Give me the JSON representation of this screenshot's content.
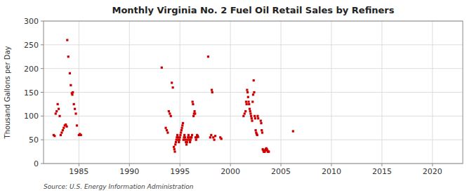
{
  "chart_data": {
    "type": "scatter",
    "title": "Monthly Virginia No. 2 Fuel Oil Retail Sales by Refiners",
    "ylabel": "Thousand Gallons per Day",
    "source": "Source: U.S. Energy Information Administration",
    "color": "#cc0000",
    "marker": "square",
    "grid": true,
    "xlim": [
      1981.5,
      2023
    ],
    "ylim": [
      0,
      300
    ],
    "xticks": [
      1985,
      1990,
      1995,
      2000,
      2005,
      2010,
      2015,
      2020
    ],
    "yticks": [
      0,
      50,
      100,
      150,
      200,
      250,
      300
    ],
    "x": [
      1982.5,
      1982.6,
      1982.7,
      1982.8,
      1982.9,
      1983.0,
      1983.1,
      1983.2,
      1983.3,
      1983.4,
      1983.5,
      1983.6,
      1983.7,
      1983.8,
      1983.85,
      1983.95,
      1984.1,
      1984.2,
      1984.3,
      1984.35,
      1984.4,
      1984.5,
      1984.6,
      1984.7,
      1984.8,
      1985.0,
      1985.1,
      1985.2,
      1993.2,
      1993.6,
      1993.7,
      1993.8,
      1993.9,
      1994.0,
      1994.1,
      1994.2,
      1994.3,
      1994.4,
      1994.45,
      1994.5,
      1994.55,
      1994.6,
      1994.65,
      1994.7,
      1994.75,
      1994.8,
      1994.85,
      1994.9,
      1994.95,
      1995.0,
      1995.05,
      1995.1,
      1995.15,
      1995.2,
      1995.25,
      1995.3,
      1995.35,
      1995.4,
      1995.45,
      1995.5,
      1995.55,
      1995.6,
      1995.65,
      1995.7,
      1995.75,
      1995.8,
      1995.85,
      1995.9,
      1995.95,
      1996.0,
      1996.05,
      1996.1,
      1996.15,
      1996.2,
      1996.25,
      1996.3,
      1996.35,
      1996.4,
      1996.45,
      1996.5,
      1996.55,
      1996.6,
      1996.65,
      1996.7,
      1996.75,
      1996.8,
      1997.8,
      1998.0,
      1998.1,
      1998.15,
      1998.2,
      1998.3,
      1998.4,
      1998.5,
      1999.0,
      1999.1,
      2001.3,
      2001.4,
      2001.5,
      2001.55,
      2001.6,
      2001.65,
      2001.7,
      2001.75,
      2001.8,
      2001.85,
      2001.9,
      2001.95,
      2002.0,
      2002.05,
      2002.1,
      2002.15,
      2002.2,
      2002.25,
      2002.3,
      2002.35,
      2002.4,
      2002.45,
      2002.5,
      2002.55,
      2002.6,
      2002.65,
      2002.7,
      2002.75,
      2003.0,
      2003.05,
      2003.1,
      2003.15,
      2003.2,
      2003.25,
      2003.3,
      2003.35,
      2003.4,
      2003.45,
      2003.5,
      2003.55,
      2003.6,
      2003.65,
      2003.7,
      2003.75,
      2003.8,
      2006.2
    ],
    "values": [
      60,
      58,
      105,
      110,
      125,
      115,
      100,
      60,
      65,
      70,
      75,
      80,
      82,
      78,
      260,
      225,
      190,
      165,
      148,
      145,
      150,
      125,
      115,
      105,
      80,
      60,
      62,
      60,
      202,
      75,
      70,
      65,
      110,
      105,
      100,
      170,
      160,
      35,
      30,
      25,
      40,
      45,
      50,
      55,
      60,
      55,
      50,
      45,
      50,
      55,
      60,
      65,
      70,
      75,
      80,
      85,
      50,
      55,
      60,
      55,
      50,
      45,
      40,
      45,
      50,
      55,
      60,
      55,
      50,
      45,
      50,
      55,
      55,
      60,
      130,
      125,
      100,
      105,
      110,
      105,
      55,
      50,
      55,
      60,
      58,
      56,
      225,
      55,
      60,
      155,
      150,
      55,
      50,
      58,
      55,
      52,
      100,
      105,
      110,
      130,
      125,
      155,
      150,
      140,
      130,
      125,
      115,
      110,
      105,
      100,
      95,
      90,
      130,
      145,
      175,
      150,
      100,
      95,
      70,
      65,
      62,
      60,
      100,
      95,
      90,
      85,
      70,
      65,
      30,
      28,
      25,
      25,
      25,
      28,
      30,
      32,
      30,
      28,
      25,
      25,
      25,
      68
    ]
  }
}
